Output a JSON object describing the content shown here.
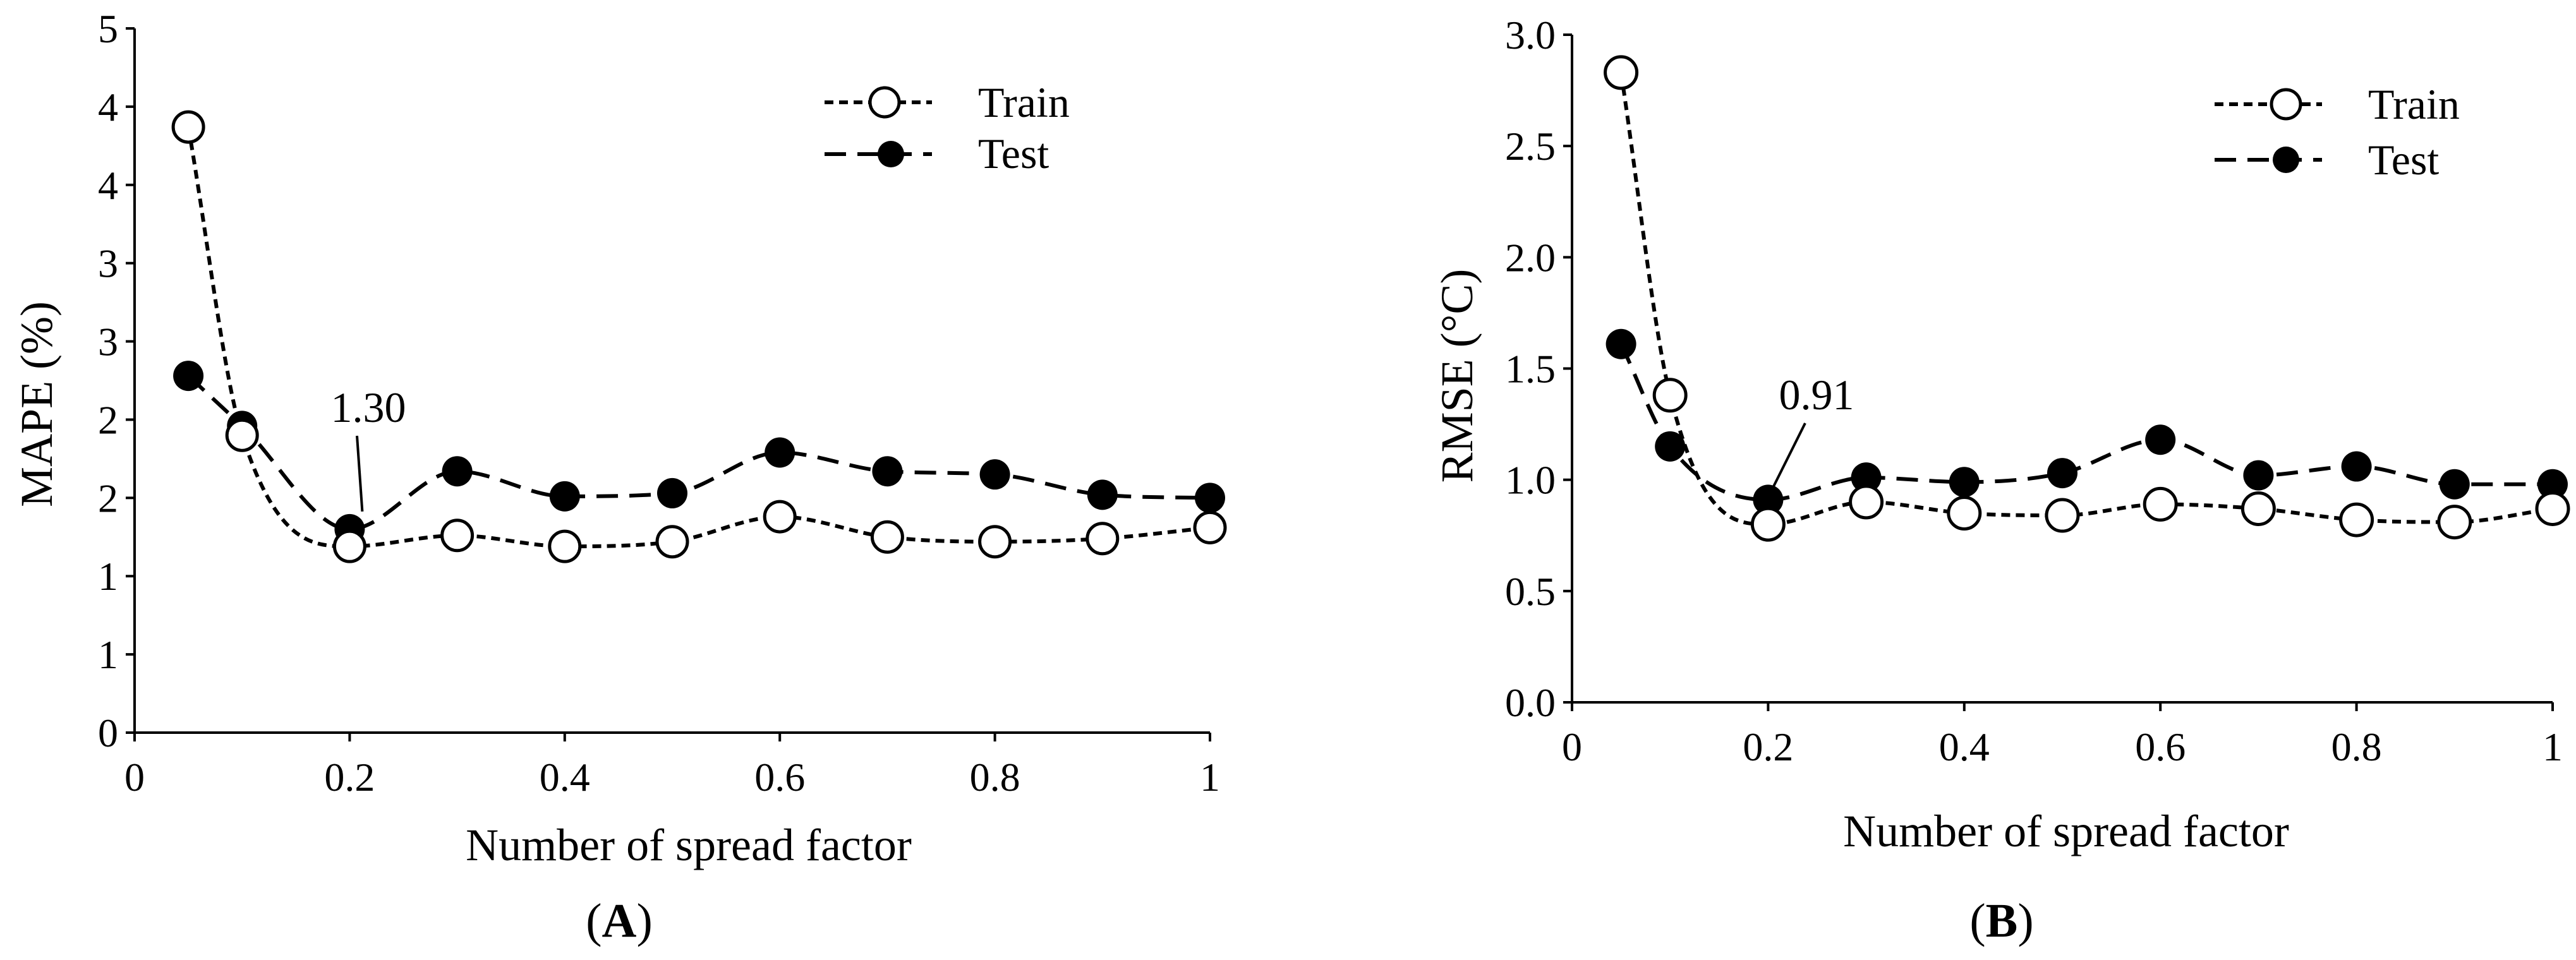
{
  "chart_data": [
    {
      "id": "A",
      "type": "line",
      "panel_label": {
        "open": "(",
        "letter": "A",
        "close": ")"
      },
      "xlabel": "Number of spread factor",
      "ylabel": "MAPE (%)",
      "xlim": [
        0,
        1
      ],
      "ylim": [
        0,
        4.5
      ],
      "x_ticks": [
        0,
        0.2,
        0.4,
        0.6,
        0.8,
        1
      ],
      "x_tick_labels": [
        "0",
        "0.2",
        "0.4",
        "0.6",
        "0.8",
        "1"
      ],
      "y_ticks": [
        0,
        0.5,
        1,
        1.5,
        2,
        2.5,
        3,
        3.5,
        4,
        4.5
      ],
      "y_tick_labels": [
        "0",
        "1",
        "1",
        "2",
        "2",
        "3",
        "3",
        "4",
        "4",
        "5"
      ],
      "x": [
        0.05,
        0.1,
        0.2,
        0.3,
        0.4,
        0.5,
        0.6,
        0.7,
        0.8,
        0.9,
        1.0
      ],
      "series": [
        {
          "name": "Train",
          "marker": "open-circle",
          "dash": "short",
          "values": [
            3.87,
            1.9,
            1.19,
            1.26,
            1.19,
            1.22,
            1.38,
            1.25,
            1.22,
            1.24,
            1.31
          ]
        },
        {
          "name": "Test",
          "marker": "filled-circle",
          "dash": "long",
          "values": [
            2.28,
            1.96,
            1.3,
            1.67,
            1.51,
            1.53,
            1.79,
            1.67,
            1.65,
            1.52,
            1.5
          ]
        }
      ],
      "legend": [
        "Train",
        "Test"
      ],
      "legend_position": "top-right",
      "annotation": {
        "text": "1.30",
        "x": 0.2,
        "y": 1.3
      }
    },
    {
      "id": "B",
      "type": "line",
      "panel_label": {
        "open": "(",
        "letter": "B",
        "close": ")"
      },
      "xlabel": "Number of spread factor",
      "ylabel": "RMSE (°C)",
      "xlim": [
        0,
        1
      ],
      "ylim": [
        0,
        3
      ],
      "x_ticks": [
        0,
        0.2,
        0.4,
        0.6,
        0.8,
        1
      ],
      "x_tick_labels": [
        "0",
        "0.2",
        "0.4",
        "0.6",
        "0.8",
        "1"
      ],
      "y_ticks": [
        0,
        0.5,
        1,
        1.5,
        2,
        2.5,
        3
      ],
      "y_tick_labels": [
        "0.0",
        "0.5",
        "1.0",
        "1.5",
        "2.0",
        "2.5",
        "3.0"
      ],
      "x": [
        0.05,
        0.1,
        0.2,
        0.3,
        0.4,
        0.5,
        0.6,
        0.7,
        0.8,
        0.9,
        1.0
      ],
      "series": [
        {
          "name": "Train",
          "marker": "open-circle",
          "dash": "short",
          "values": [
            2.83,
            1.38,
            0.8,
            0.9,
            0.85,
            0.84,
            0.89,
            0.87,
            0.82,
            0.81,
            0.87
          ]
        },
        {
          "name": "Test",
          "marker": "filled-circle",
          "dash": "long",
          "values": [
            1.61,
            1.15,
            0.91,
            1.01,
            0.99,
            1.03,
            1.18,
            1.02,
            1.06,
            0.98,
            0.98
          ]
        }
      ],
      "legend": [
        "Train",
        "Test"
      ],
      "legend_position": "top-right",
      "annotation": {
        "text": "0.91",
        "x": 0.2,
        "y": 0.91
      }
    }
  ]
}
